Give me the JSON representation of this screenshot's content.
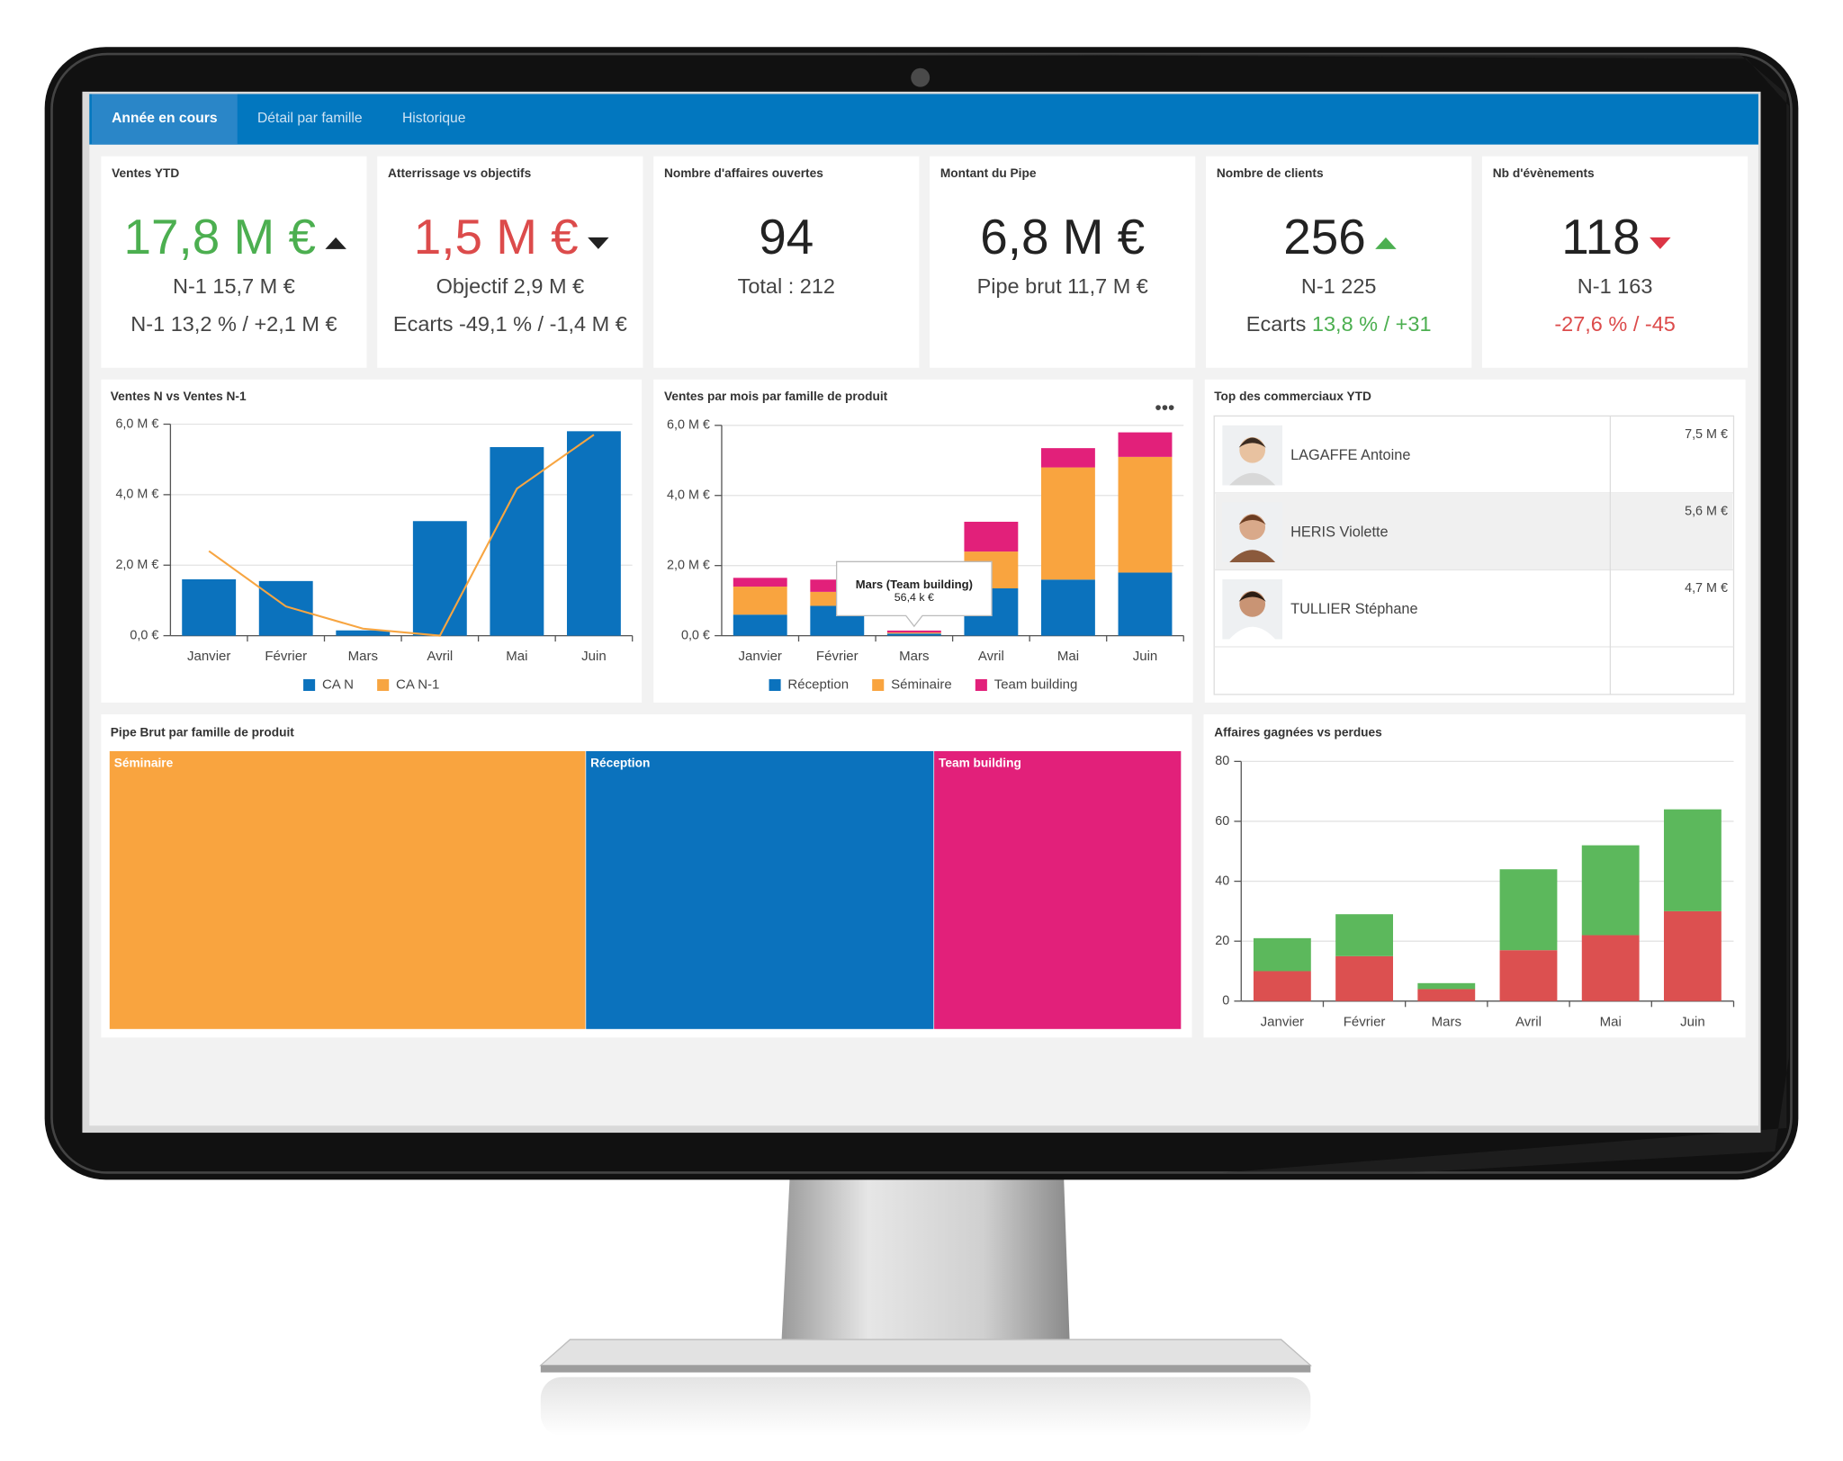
{
  "tabs": [
    {
      "label": "Année en cours",
      "active": true
    },
    {
      "label": "Détail par famille",
      "active": false
    },
    {
      "label": "Historique",
      "active": false
    }
  ],
  "kpis": [
    {
      "title": "Ventes YTD",
      "value": "17,8 M €",
      "color": "#4caf50",
      "trend": "up",
      "trend_color": "#222",
      "lines": [
        [
          {
            "text": "N-1 15,7 M €"
          }
        ],
        [
          {
            "text": "N-1 13,2 % / +2,1 M €"
          }
        ]
      ]
    },
    {
      "title": "Atterrissage vs objectifs",
      "value": "1,5 M €",
      "color": "#dc4b4b",
      "trend": "down",
      "trend_color": "#222",
      "lines": [
        [
          {
            "text": "Objectif 2,9 M €"
          }
        ],
        [
          {
            "text": "Ecarts -49,1 % / -1,4 M €"
          }
        ]
      ]
    },
    {
      "title": "Nombre d'affaires ouvertes",
      "value": "94",
      "color": "#222",
      "lines": [
        [
          {
            "text": "Total : 212"
          }
        ]
      ]
    },
    {
      "title": "Montant du Pipe",
      "value": "6,8 M €",
      "color": "#222",
      "lines": [
        [
          {
            "text": "Pipe brut 11,7 M €"
          }
        ]
      ]
    },
    {
      "title": "Nombre de clients",
      "value": "256",
      "color": "#222",
      "trend": "up",
      "trend_color": "#4caf50",
      "lines": [
        [
          {
            "text": "N-1 225"
          }
        ],
        [
          {
            "text": "Ecarts "
          },
          {
            "text": "13,8 % / +31",
            "color": "#4caf50"
          }
        ]
      ]
    },
    {
      "title": "Nb d'évènements",
      "value": "118",
      "color": "#222",
      "trend": "down",
      "trend_color": "#dc3545",
      "lines": [
        [
          {
            "text": "N-1 163"
          }
        ],
        [
          {
            "text": "-27,6 % / -45",
            "color": "#dc4b4b"
          }
        ]
      ]
    }
  ],
  "chart_data": [
    {
      "type": "bar",
      "title": "Ventes N vs Ventes N-1",
      "categories": [
        "Janvier",
        "Février",
        "Mars",
        "Avril",
        "Mai",
        "Juin"
      ],
      "series": [
        {
          "name": "CA N",
          "color": "#0b72bd",
          "type": "bar",
          "values": [
            1.6,
            1.55,
            0.15,
            3.25,
            5.35,
            5.8
          ]
        },
        {
          "name": "CA N-1",
          "color": "#f7a541",
          "type": "line",
          "values": [
            2.4,
            0.83,
            0.2,
            0,
            4.17,
            5.7
          ]
        }
      ],
      "ylim": [
        0,
        6
      ],
      "yticks": [
        {
          "value": 0,
          "label": "0,0 €"
        },
        {
          "value": 2,
          "label": "2,0 M €"
        },
        {
          "value": 4,
          "label": "4,0 M €"
        },
        {
          "value": 6,
          "label": "6,0 M €"
        }
      ],
      "grid": true,
      "legend": "bottom"
    },
    {
      "type": "stacked_bar",
      "title": "Ventes par mois par famille de produit",
      "categories": [
        "Janvier",
        "Février",
        "Mars",
        "Avril",
        "Mai",
        "Juin"
      ],
      "series": [
        {
          "name": "Réception",
          "color": "#0b72bd",
          "values": [
            0.6,
            0.85,
            0.06,
            1.35,
            1.6,
            1.8
          ]
        },
        {
          "name": "Séminaire",
          "color": "#f9a43f",
          "values": [
            0.8,
            0.4,
            0.03,
            1.05,
            3.2,
            3.3
          ]
        },
        {
          "name": "Team building",
          "color": "#e2207a",
          "values": [
            0.25,
            0.35,
            0.0564,
            0.85,
            0.55,
            0.7
          ],
          "value_labels": [
            null,
            null,
            "56,4 k €",
            null,
            null,
            null
          ]
        }
      ],
      "tooltip_title": "Mars (Team building)",
      "ylim": [
        0,
        6
      ],
      "yticks": [
        {
          "value": 0,
          "label": "0,0 €"
        },
        {
          "value": 2,
          "label": "2,0 M €"
        },
        {
          "value": 4,
          "label": "4,0 M €"
        },
        {
          "value": 6,
          "label": "6,0 M €"
        }
      ],
      "grid": true,
      "legend": "bottom"
    },
    {
      "type": "treemap",
      "title": "Pipe Brut par famille de produit",
      "categories": [
        "Séminaire",
        "Réception",
        "Team building"
      ],
      "values": [
        5.2,
        3.8,
        2.7
      ],
      "colors": [
        "#f9a43f",
        "#0b72bd",
        "#e2207a"
      ]
    },
    {
      "type": "stacked_bar",
      "title": "Affaires gagnées vs perdues",
      "categories": [
        "Janvier",
        "Février",
        "Mars",
        "Avril",
        "Mai",
        "Juin"
      ],
      "series": [
        {
          "color": "#dc5050",
          "values": [
            10,
            15,
            4,
            17,
            22,
            30
          ]
        },
        {
          "color": "#5cb85c",
          "values": [
            11,
            14,
            2,
            27,
            30,
            34
          ]
        }
      ],
      "ylim": [
        0,
        80
      ],
      "yticks": [
        0,
        20,
        40,
        60,
        80
      ],
      "grid": true
    }
  ],
  "top_sellers": {
    "title": "Top des commerciaux YTD",
    "rows": [
      {
        "name": "LAGAFFE Antoine",
        "value": "7,5 M €"
      },
      {
        "name": "HERIS Violette",
        "value": "5,6 M €"
      },
      {
        "name": "TULLIER Stéphane",
        "value": "4,7 M €"
      }
    ]
  }
}
